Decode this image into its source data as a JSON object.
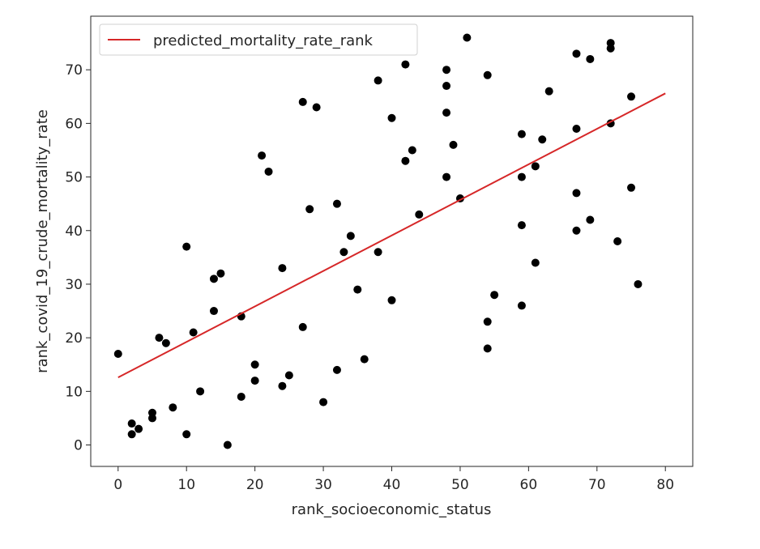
{
  "chart_data": {
    "type": "scatter",
    "title": "",
    "xlabel": "rank_socioeconomic_status",
    "ylabel": "rank_covid_19_crude_mortality_rate",
    "xlim": [
      -4,
      84
    ],
    "ylim": [
      -4,
      80
    ],
    "xticks": [
      0,
      10,
      20,
      30,
      40,
      50,
      60,
      70,
      80
    ],
    "yticks": [
      0,
      10,
      20,
      30,
      40,
      50,
      60,
      70
    ],
    "grid": false,
    "legend_position": "top-left",
    "colors": {
      "points": "#000000",
      "line": "#d62728",
      "frame": "#262626"
    },
    "series": [
      {
        "type": "scatter",
        "points": [
          [
            0,
            17
          ],
          [
            2,
            4
          ],
          [
            2,
            2
          ],
          [
            3,
            3
          ],
          [
            5,
            6
          ],
          [
            5,
            5
          ],
          [
            6,
            20
          ],
          [
            7,
            19
          ],
          [
            8,
            7
          ],
          [
            10,
            37
          ],
          [
            10,
            2
          ],
          [
            11,
            21
          ],
          [
            12,
            10
          ],
          [
            14,
            25
          ],
          [
            14,
            31
          ],
          [
            15,
            32
          ],
          [
            16,
            0
          ],
          [
            18,
            24
          ],
          [
            18,
            9
          ],
          [
            20,
            15
          ],
          [
            20,
            12
          ],
          [
            21,
            54
          ],
          [
            22,
            51
          ],
          [
            24,
            33
          ],
          [
            24,
            11
          ],
          [
            25,
            13
          ],
          [
            27,
            64
          ],
          [
            27,
            22
          ],
          [
            28,
            44
          ],
          [
            29,
            63
          ],
          [
            30,
            8
          ],
          [
            32,
            45
          ],
          [
            32,
            14
          ],
          [
            33,
            36
          ],
          [
            34,
            39
          ],
          [
            35,
            29
          ],
          [
            36,
            16
          ],
          [
            38,
            68
          ],
          [
            38,
            36
          ],
          [
            40,
            61
          ],
          [
            40,
            27
          ],
          [
            42,
            71
          ],
          [
            42,
            53
          ],
          [
            43,
            55
          ],
          [
            44,
            43
          ],
          [
            48,
            70
          ],
          [
            48,
            67
          ],
          [
            48,
            62
          ],
          [
            48,
            50
          ],
          [
            49,
            56
          ],
          [
            50,
            46
          ],
          [
            51,
            76
          ],
          [
            54,
            69
          ],
          [
            54,
            23
          ],
          [
            54,
            18
          ],
          [
            55,
            28
          ],
          [
            59,
            58
          ],
          [
            59,
            50
          ],
          [
            59,
            41
          ],
          [
            59,
            26
          ],
          [
            61,
            52
          ],
          [
            61,
            34
          ],
          [
            62,
            57
          ],
          [
            63,
            66
          ],
          [
            67,
            73
          ],
          [
            67,
            59
          ],
          [
            67,
            47
          ],
          [
            67,
            40
          ],
          [
            69,
            72
          ],
          [
            69,
            42
          ],
          [
            72,
            75
          ],
          [
            72,
            74
          ],
          [
            72,
            60
          ],
          [
            73,
            38
          ],
          [
            75,
            65
          ],
          [
            75,
            48
          ],
          [
            76,
            30
          ]
        ]
      },
      {
        "type": "line",
        "name": "predicted_mortality_rate_rank",
        "points": [
          [
            0,
            12.6
          ],
          [
            80,
            65.6
          ]
        ]
      }
    ]
  }
}
